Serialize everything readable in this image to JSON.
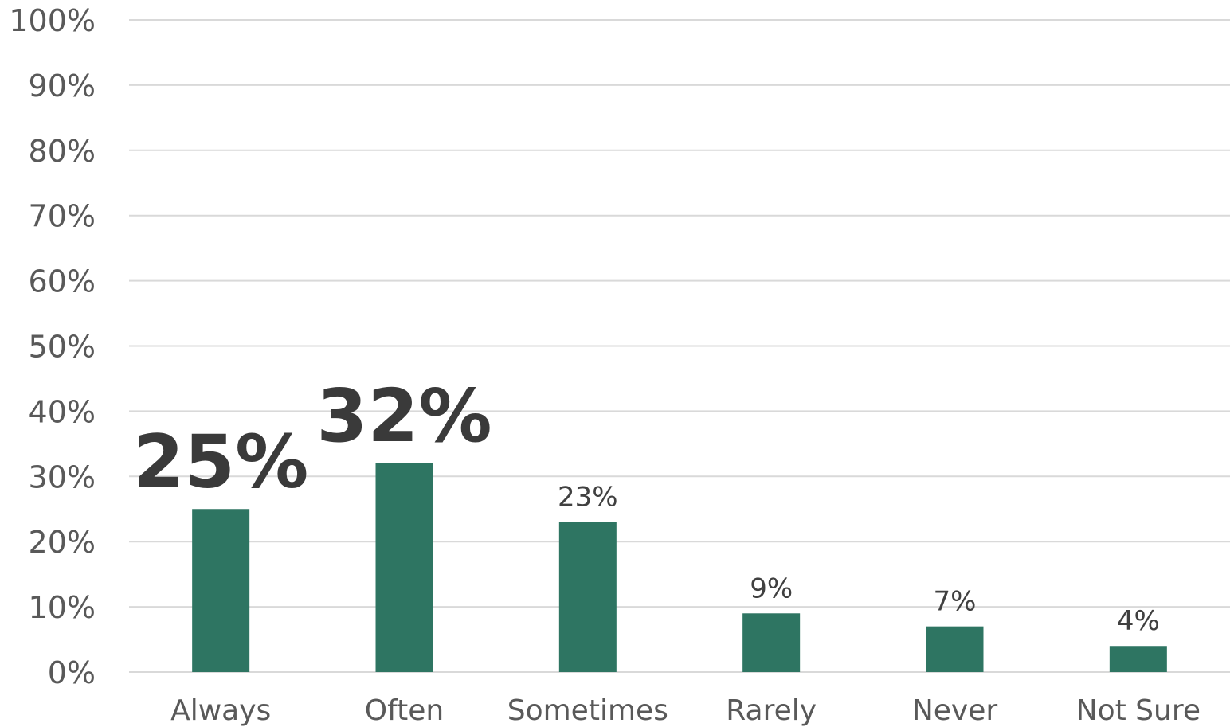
{
  "chart_data": {
    "type": "bar",
    "categories": [
      "Always",
      "Often",
      "Sometimes",
      "Rarely",
      "Never",
      "Not Sure"
    ],
    "values": [
      25,
      32,
      23,
      9,
      7,
      4
    ],
    "value_labels": [
      "25%",
      "32%",
      "23%",
      "9%",
      "7%",
      "4%"
    ],
    "emphasized": [
      true,
      true,
      false,
      false,
      false,
      false
    ],
    "y_ticks": [
      "0%",
      "10%",
      "20%",
      "30%",
      "40%",
      "50%",
      "60%",
      "70%",
      "80%",
      "90%",
      "100%"
    ],
    "ylim": [
      0,
      100
    ],
    "grid": true,
    "legend": "none",
    "bar_color": "#2e7562"
  }
}
